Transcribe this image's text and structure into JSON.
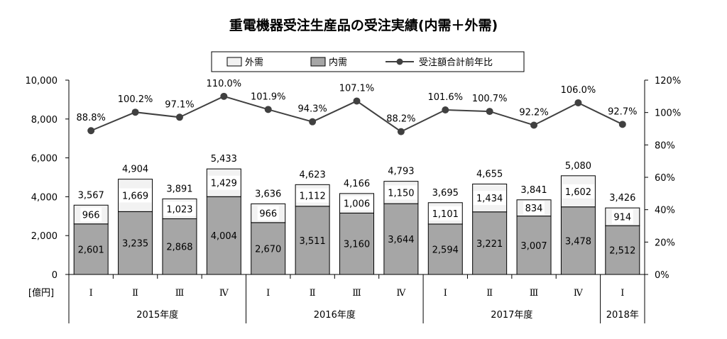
{
  "chart_data": {
    "type": "bar",
    "title": "重電機器受注生産品の受注実績(内需＋外需)",
    "y_unit": "[億円]",
    "ylim": [
      0,
      10000
    ],
    "y_ticks": [
      "0",
      "2,000",
      "4,000",
      "6,000",
      "8,000",
      "10,000"
    ],
    "y2lim": [
      0,
      120
    ],
    "y2_ticks": [
      "0%",
      "20%",
      "40%",
      "60%",
      "80%",
      "100%",
      "120%"
    ],
    "categories": [
      "Ⅰ",
      "Ⅱ",
      "Ⅲ",
      "Ⅳ",
      "Ⅰ",
      "Ⅱ",
      "Ⅲ",
      "Ⅳ",
      "Ⅰ",
      "Ⅱ",
      "Ⅲ",
      "Ⅳ",
      "Ⅰ"
    ],
    "groups": [
      {
        "label": "2015年度",
        "count": 4
      },
      {
        "label": "2016年度",
        "count": 4
      },
      {
        "label": "2017年度",
        "count": 4
      },
      {
        "label": "2018年",
        "count": 1
      }
    ],
    "series": [
      {
        "name": "内需",
        "kind": "bar",
        "color": "#a6a6a6",
        "values": [
          2601,
          3235,
          2868,
          4004,
          2670,
          3511,
          3160,
          3644,
          2594,
          3221,
          3007,
          3478,
          2512
        ],
        "labels": [
          "2,601",
          "3,235",
          "2,868",
          "4,004",
          "2,670",
          "3,511",
          "3,160",
          "3,644",
          "2,594",
          "3,221",
          "3,007",
          "3,478",
          "2,512"
        ]
      },
      {
        "name": "外需",
        "kind": "bar",
        "color": "#f2f2f2",
        "values": [
          966,
          1669,
          1023,
          1429,
          966,
          1112,
          1006,
          1150,
          1101,
          1434,
          834,
          1602,
          914
        ],
        "labels": [
          "966",
          "1,669",
          "1,023",
          "1,429",
          "966",
          "1,112",
          "1,006",
          "1,150",
          "1,101",
          "1,434",
          "834",
          "1,602",
          "914"
        ]
      },
      {
        "name": "受注額合計前年比",
        "kind": "line",
        "color": "#404040",
        "axis": "right",
        "values": [
          88.8,
          100.2,
          97.1,
          110.0,
          101.9,
          94.3,
          107.1,
          88.2,
          101.6,
          100.7,
          92.2,
          106.0,
          92.7
        ],
        "labels": [
          "88.8%",
          "100.2%",
          "97.1%",
          "110.0%",
          "101.9%",
          "94.3%",
          "107.1%",
          "88.2%",
          "101.6%",
          "100.7%",
          "92.2%",
          "106.0%",
          "92.7%"
        ]
      }
    ],
    "totals": [
      "3,567",
      "4,904",
      "3,891",
      "5,433",
      "3,636",
      "4,623",
      "4,166",
      "4,793",
      "3,695",
      "4,655",
      "3,841",
      "5,080",
      "3,426"
    ],
    "legend_position": "top-center",
    "grid": false
  }
}
